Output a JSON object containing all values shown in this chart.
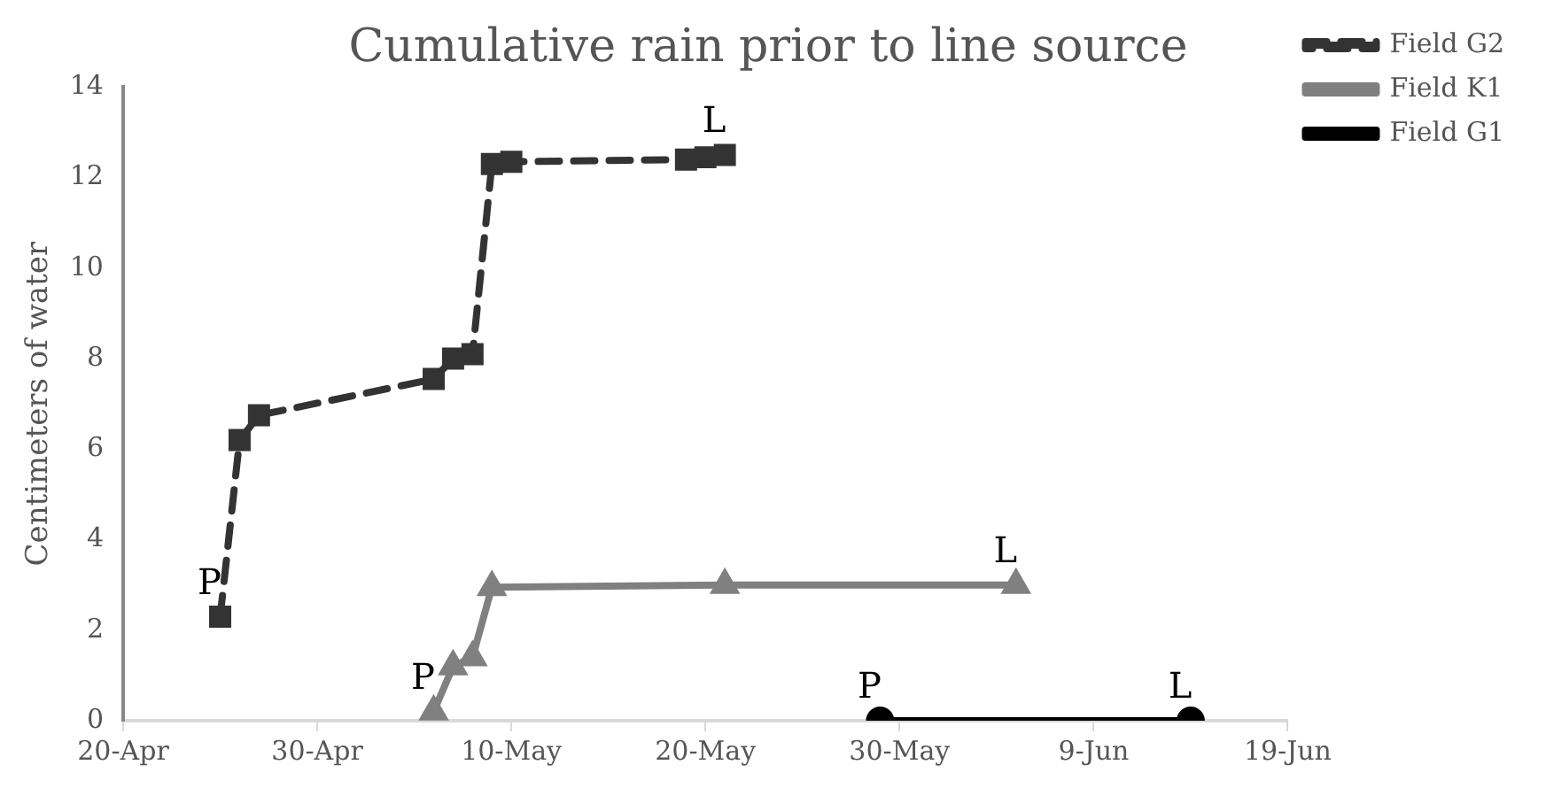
{
  "chart_data": {
    "type": "line",
    "title": "Cumulative rain prior to line source",
    "ylabel": "Centimeters of water",
    "series": [
      {
        "name": "Field G2",
        "color": "#333333",
        "line_style": "dashed",
        "marker": "square",
        "x": [
          "--04-25",
          "--04-26",
          "--04-27",
          "--05-06",
          "--05-07",
          "--05-08",
          "--05-09",
          "--05-10",
          "--05-19",
          "--05-20",
          "--05-21"
        ],
        "values": [
          2.3,
          6.2,
          6.75,
          7.55,
          8.0,
          8.1,
          12.3,
          12.35,
          12.4,
          12.45,
          12.5
        ]
      },
      {
        "name": "Field K1",
        "color": "#808080",
        "line_style": "solid",
        "marker": "triangle",
        "x": [
          "--05-06",
          "--05-07",
          "--05-08",
          "--05-09",
          "--05-21",
          "--06-05"
        ],
        "values": [
          0.2,
          1.2,
          1.4,
          2.95,
          3.0,
          3.0
        ]
      },
      {
        "name": "Field G1",
        "color": "#000000",
        "line_style": "solid",
        "marker": "circle",
        "x": [
          "--05-29",
          "--06-14"
        ],
        "values": [
          0,
          0
        ]
      }
    ],
    "xlim": [
      "--04-20",
      "--06-19"
    ],
    "xticks": [
      {
        "value": "--04-20",
        "label": "20-Apr"
      },
      {
        "value": "--04-30",
        "label": "30-Apr"
      },
      {
        "value": "--05-10",
        "label": "10-May"
      },
      {
        "value": "--05-20",
        "label": "20-May"
      },
      {
        "value": "--05-30",
        "label": "30-May"
      },
      {
        "value": "--06-09",
        "label": "9-Jun"
      },
      {
        "value": "--06-19",
        "label": "19-Jun"
      }
    ],
    "ylim": [
      0,
      14
    ],
    "yticks": [
      0,
      2,
      4,
      6,
      8,
      10,
      12,
      14
    ],
    "legend": "top right",
    "annotations": [
      {
        "text": "P",
        "x": "--04-25",
        "y": 2.3
      },
      {
        "text": "L",
        "x": "--05-21",
        "y": 12.5
      },
      {
        "text": "P",
        "x": "--05-06",
        "y": 0.2
      },
      {
        "text": "L",
        "x": "--06-05",
        "y": 3.0
      },
      {
        "text": "P",
        "x": "--05-29",
        "y": 0
      },
      {
        "text": "L",
        "x": "--06-14",
        "y": 0
      }
    ]
  }
}
